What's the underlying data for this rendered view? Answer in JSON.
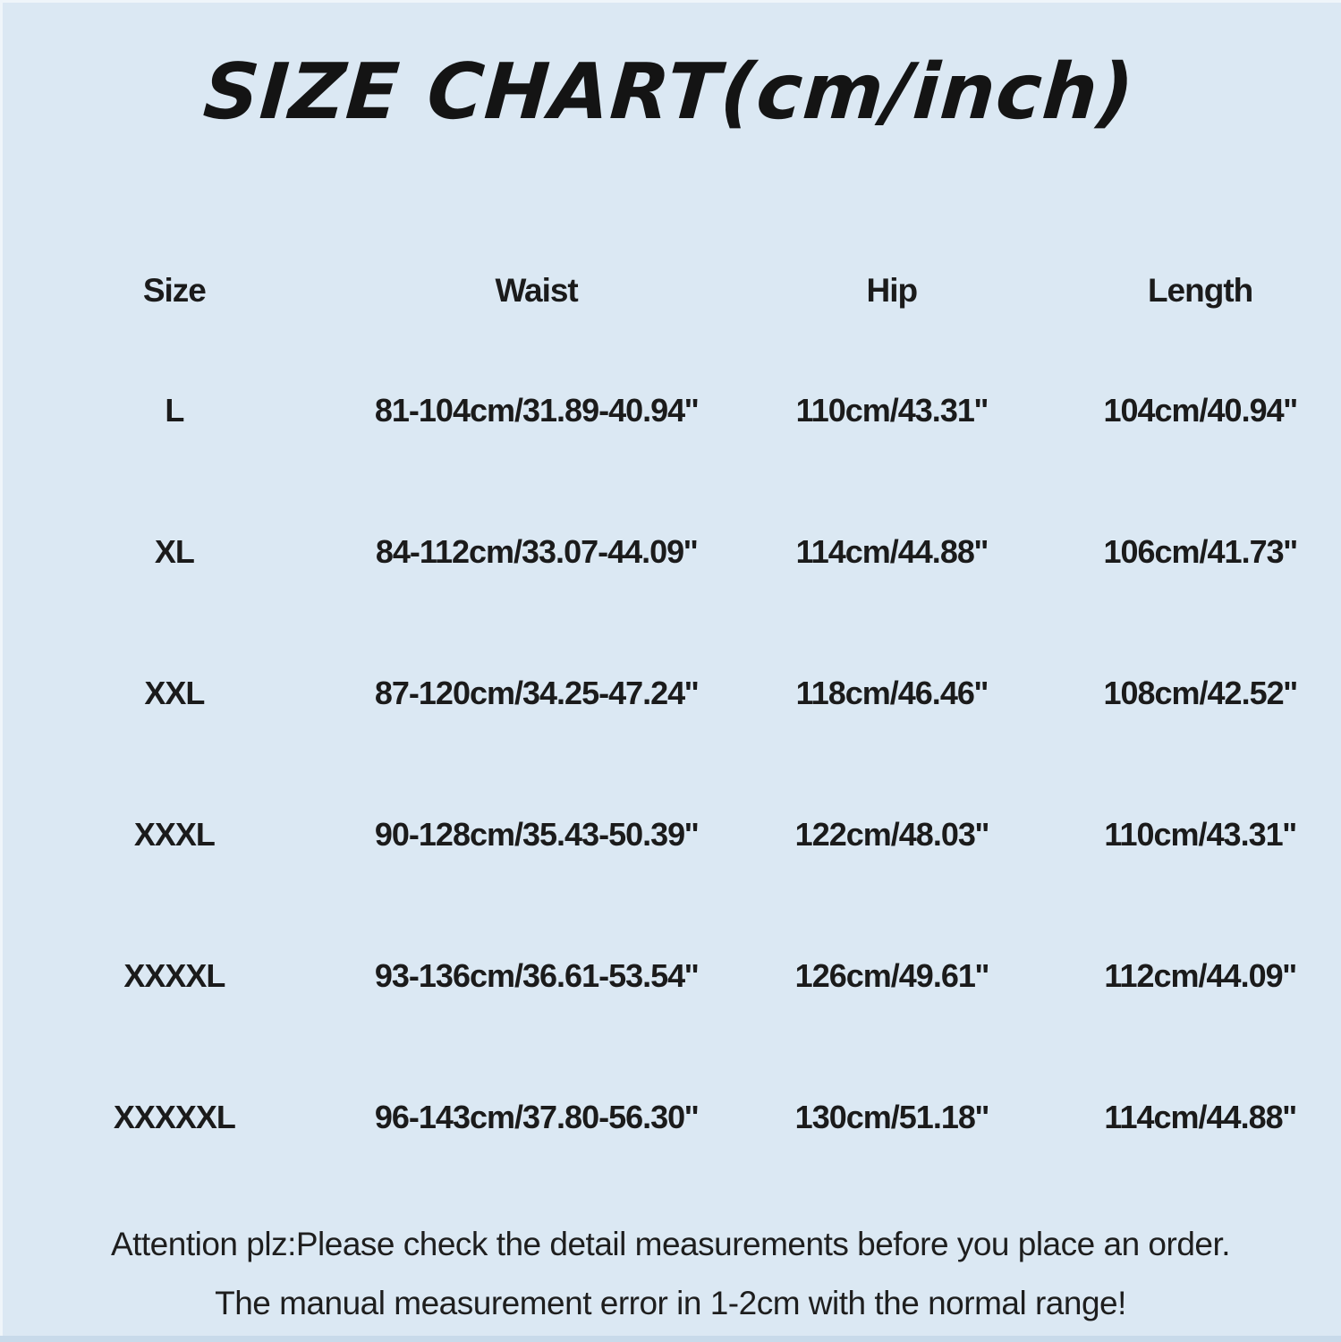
{
  "page": {
    "background_color": "#dbe8f3",
    "text_color": "#1b1b1b",
    "bottom_strip_color": "#c8daea"
  },
  "title": "SIZE CHART(cm/inch)",
  "table": {
    "headers": [
      "Size",
      "Waist",
      "Hip",
      "Length"
    ],
    "rows": [
      {
        "size": "L",
        "waist": "81-104cm/31.89-40.94''",
        "hip": "110cm/43.31''",
        "length": "104cm/40.94''"
      },
      {
        "size": "XL",
        "waist": "84-112cm/33.07-44.09''",
        "hip": "114cm/44.88''",
        "length": "106cm/41.73''"
      },
      {
        "size": "XXL",
        "waist": "87-120cm/34.25-47.24''",
        "hip": "118cm/46.46''",
        "length": "108cm/42.52''"
      },
      {
        "size": "XXXL",
        "waist": "90-128cm/35.43-50.39''",
        "hip": "122cm/48.03''",
        "length": "110cm/43.31''"
      },
      {
        "size": "XXXXL",
        "waist": "93-136cm/36.61-53.54''",
        "hip": "126cm/49.61''",
        "length": "112cm/44.09''"
      },
      {
        "size": "XXXXXL",
        "waist": "96-143cm/37.80-56.30''",
        "hip": "130cm/51.18''",
        "length": "114cm/44.88''"
      }
    ]
  },
  "notes": {
    "line1": "Attention plz:Please check the detail measurements before you place an order.",
    "line2": "The manual measurement error in 1-2cm with the normal range!"
  }
}
